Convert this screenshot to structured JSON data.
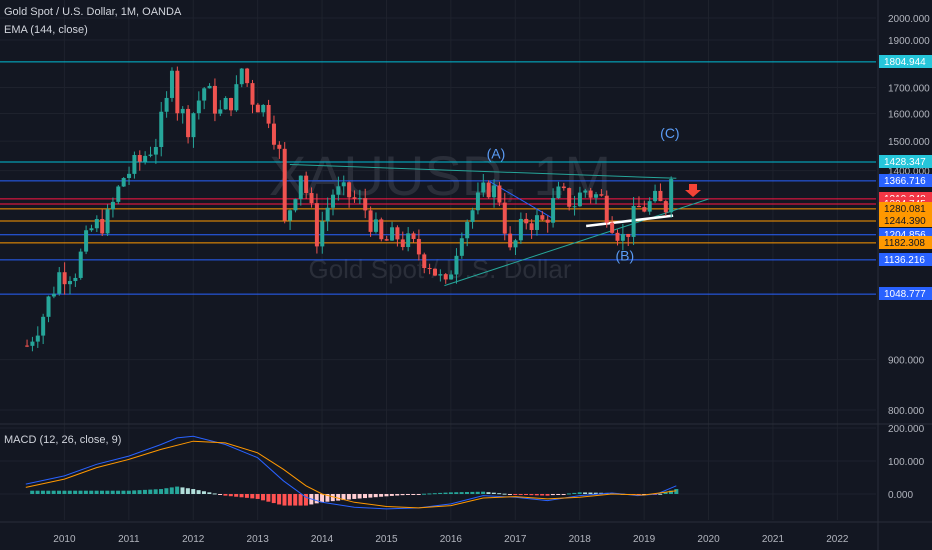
{
  "header": {
    "symbol_title": "Gold Spot / U.S. Dollar, 1M, OANDA",
    "indicator": "EMA (144, close)",
    "macd_label": "MACD (12, 26, close, 9)"
  },
  "watermark": {
    "ticker": "XAUUSD, 1M",
    "name": "Gold Spot / U.S. Dollar"
  },
  "colors": {
    "background": "#131722",
    "up_candle": "#26a69a",
    "down_candle": "#ef5350",
    "macd_line": "#2962ff",
    "signal_line": "#ff9800",
    "blue_level": "#2962ff",
    "red_level": "#ff1744",
    "orange_level": "#ff9800",
    "teal_level": "#00bcd4"
  },
  "chart_data": {
    "type": "candlestick",
    "title": "Gold Spot / U.S. Dollar, 1M, OANDA",
    "x_ticks": [
      "2010",
      "2011",
      "2012",
      "2013",
      "2014",
      "2015",
      "2016",
      "2017",
      "2018",
      "2019",
      "2020",
      "2021",
      "2022"
    ],
    "price_axis": {
      "ticks": [
        "2000.000",
        "1900.000",
        "1700.000",
        "1600.000",
        "1500.000",
        "1400.000",
        "900.000",
        "800.000"
      ],
      "scale": "log",
      "range": [
        770,
        2040
      ]
    },
    "levels": [
      {
        "value": 1804.944,
        "label": "1804.944",
        "color": "teal"
      },
      {
        "value": 1428.347,
        "label": "1428.347",
        "color": "teal"
      },
      {
        "value": 1366.716,
        "label": "1366.716",
        "color": "blue"
      },
      {
        "value": 1310.348,
        "label": "1310.348",
        "color": "red"
      },
      {
        "value": 1294.745,
        "label": "1294.745",
        "color": "red"
      },
      {
        "value": 1280.081,
        "label": "1280.081",
        "color": "orange"
      },
      {
        "value": 1244.39,
        "label": "1244.390",
        "color": "orange"
      },
      {
        "value": 1204.856,
        "label": "1204.856",
        "color": "blue"
      },
      {
        "value": 1182.308,
        "label": "1182.308",
        "color": "orange"
      },
      {
        "value": 1136.216,
        "label": "1136.216",
        "color": "blue"
      },
      {
        "value": 1048.777,
        "label": "1048.777",
        "color": "blue"
      }
    ],
    "wave_labels": [
      {
        "label": "(A)",
        "date": 2016.7,
        "price": 1440
      },
      {
        "label": "(B)",
        "date": 2018.7,
        "price": 1135
      },
      {
        "label": "(C)",
        "date": 2019.4,
        "price": 1510
      }
    ],
    "monthly_close": [
      [
        2009.42,
        930
      ],
      [
        2009.67,
        1000
      ],
      [
        2009.92,
        1100
      ],
      [
        2010.17,
        1110
      ],
      [
        2010.42,
        1220
      ],
      [
        2010.67,
        1250
      ],
      [
        2010.92,
        1380
      ],
      [
        2011.17,
        1430
      ],
      [
        2011.42,
        1500
      ],
      [
        2011.58,
        1620
      ],
      [
        2011.67,
        1820
      ],
      [
        2011.75,
        1630
      ],
      [
        2011.92,
        1560
      ],
      [
        2012.17,
        1700
      ],
      [
        2012.42,
        1600
      ],
      [
        2012.67,
        1680
      ],
      [
        2012.75,
        1780
      ],
      [
        2012.92,
        1660
      ],
      [
        2013.17,
        1600
      ],
      [
        2013.33,
        1470
      ],
      [
        2013.42,
        1230
      ],
      [
        2013.67,
        1400
      ],
      [
        2013.92,
        1200
      ],
      [
        2014.17,
        1330
      ],
      [
        2014.42,
        1320
      ],
      [
        2014.67,
        1280
      ],
      [
        2014.92,
        1180
      ],
      [
        2015.17,
        1200
      ],
      [
        2015.42,
        1170
      ],
      [
        2015.67,
        1130
      ],
      [
        2015.92,
        1060
      ],
      [
        2016.17,
        1230
      ],
      [
        2016.42,
        1300
      ],
      [
        2016.58,
        1350
      ],
      [
        2016.75,
        1320
      ],
      [
        2016.92,
        1150
      ],
      [
        2017.17,
        1250
      ],
      [
        2017.42,
        1240
      ],
      [
        2017.67,
        1320
      ],
      [
        2017.92,
        1300
      ],
      [
        2018.08,
        1340
      ],
      [
        2018.33,
        1310
      ],
      [
        2018.58,
        1220
      ],
      [
        2018.67,
        1195
      ],
      [
        2018.92,
        1280
      ],
      [
        2019.17,
        1300
      ],
      [
        2019.33,
        1280
      ],
      [
        2019.42,
        1410
      ],
      [
        2019.5,
        1430
      ]
    ],
    "macd_axis": {
      "ticks": [
        "200.000",
        "100.000",
        "0.000"
      ],
      "range": [
        -60,
        210
      ]
    },
    "macd": [
      [
        2009.4,
        30
      ],
      [
        2010.0,
        55
      ],
      [
        2010.5,
        90
      ],
      [
        2011.0,
        115
      ],
      [
        2011.5,
        150
      ],
      [
        2011.75,
        170
      ],
      [
        2012.0,
        175
      ],
      [
        2012.5,
        150
      ],
      [
        2013.0,
        110
      ],
      [
        2013.4,
        40
      ],
      [
        2013.75,
        -10
      ],
      [
        2014.0,
        -25
      ],
      [
        2014.5,
        -40
      ],
      [
        2015.0,
        -45
      ],
      [
        2015.5,
        -42
      ],
      [
        2016.0,
        -30
      ],
      [
        2016.5,
        -5
      ],
      [
        2017.0,
        -10
      ],
      [
        2017.5,
        -20
      ],
      [
        2018.0,
        -5
      ],
      [
        2018.5,
        3
      ],
      [
        2018.9,
        -5
      ],
      [
        2019.2,
        0
      ],
      [
        2019.5,
        25
      ]
    ],
    "signal": [
      [
        2009.4,
        20
      ],
      [
        2010.0,
        45
      ],
      [
        2010.5,
        80
      ],
      [
        2011.0,
        105
      ],
      [
        2011.5,
        135
      ],
      [
        2012.0,
        160
      ],
      [
        2012.5,
        155
      ],
      [
        2013.0,
        125
      ],
      [
        2013.4,
        75
      ],
      [
        2013.75,
        25
      ],
      [
        2014.0,
        0
      ],
      [
        2014.5,
        -25
      ],
      [
        2015.0,
        -38
      ],
      [
        2015.5,
        -42
      ],
      [
        2016.0,
        -35
      ],
      [
        2016.5,
        -12
      ],
      [
        2017.0,
        -8
      ],
      [
        2017.5,
        -15
      ],
      [
        2018.0,
        -10
      ],
      [
        2018.5,
        0
      ],
      [
        2019.0,
        -3
      ],
      [
        2019.5,
        10
      ]
    ]
  }
}
